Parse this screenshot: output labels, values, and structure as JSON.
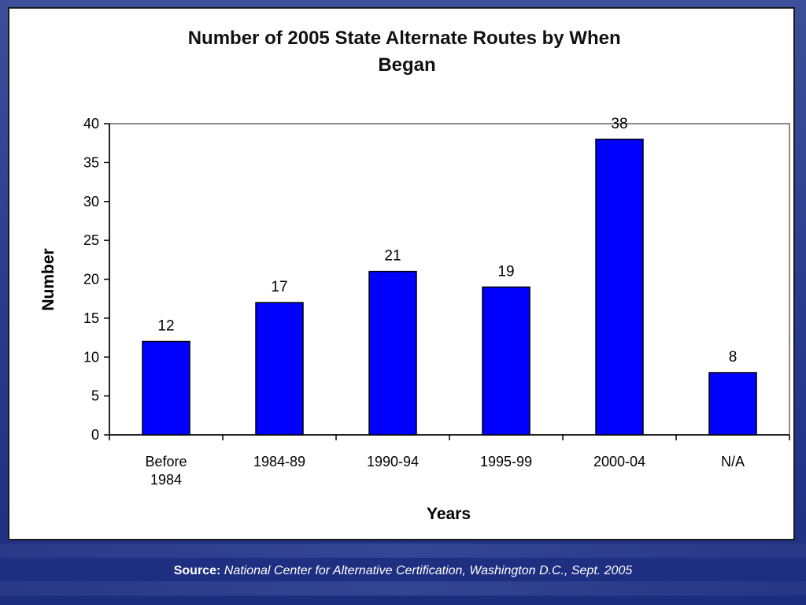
{
  "chart_data": {
    "type": "bar",
    "title": "Number of 2005 State Alternate Routes by When Began",
    "title_lines": [
      "Number of 2005 State Alternate Routes by When",
      "Began"
    ],
    "categories": [
      "Before 1984",
      "1984-89",
      "1990-94",
      "1995-99",
      "2000-04",
      "N/A"
    ],
    "category_lines": [
      [
        "Before",
        "1984"
      ],
      [
        "1984-89"
      ],
      [
        "1990-94"
      ],
      [
        "1995-99"
      ],
      [
        "2000-04"
      ],
      [
        "N/A"
      ]
    ],
    "values": [
      12,
      17,
      21,
      19,
      38,
      8
    ],
    "xlabel": "Years",
    "ylabel": "Number",
    "ylim": [
      0,
      40
    ],
    "yticks": [
      0,
      5,
      10,
      15,
      20,
      25,
      30,
      35,
      40
    ],
    "bar_color": "#0000ff",
    "grid": false,
    "data_labels": true
  },
  "source": {
    "label": "Source:",
    "text": "National Center for Alternative Certification, Washington D.C., Sept.  2005"
  }
}
